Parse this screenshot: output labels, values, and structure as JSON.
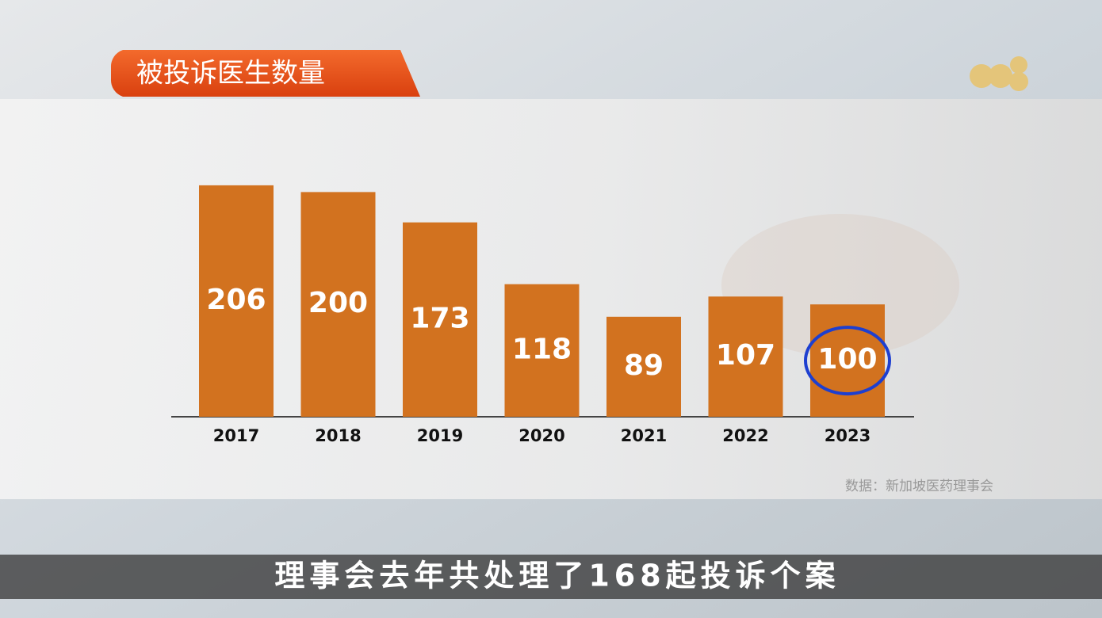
{
  "chart_data": {
    "type": "bar",
    "title": "被投诉医生数量",
    "categories": [
      "2017",
      "2018",
      "2019",
      "2020",
      "2021",
      "2022",
      "2023"
    ],
    "values": [
      206,
      200,
      173,
      118,
      89,
      107,
      100
    ],
    "color": "#d2721f",
    "source": "数据：新加坡医药理事会"
  },
  "caption": "理事会去年共处理了168起投诉个案"
}
